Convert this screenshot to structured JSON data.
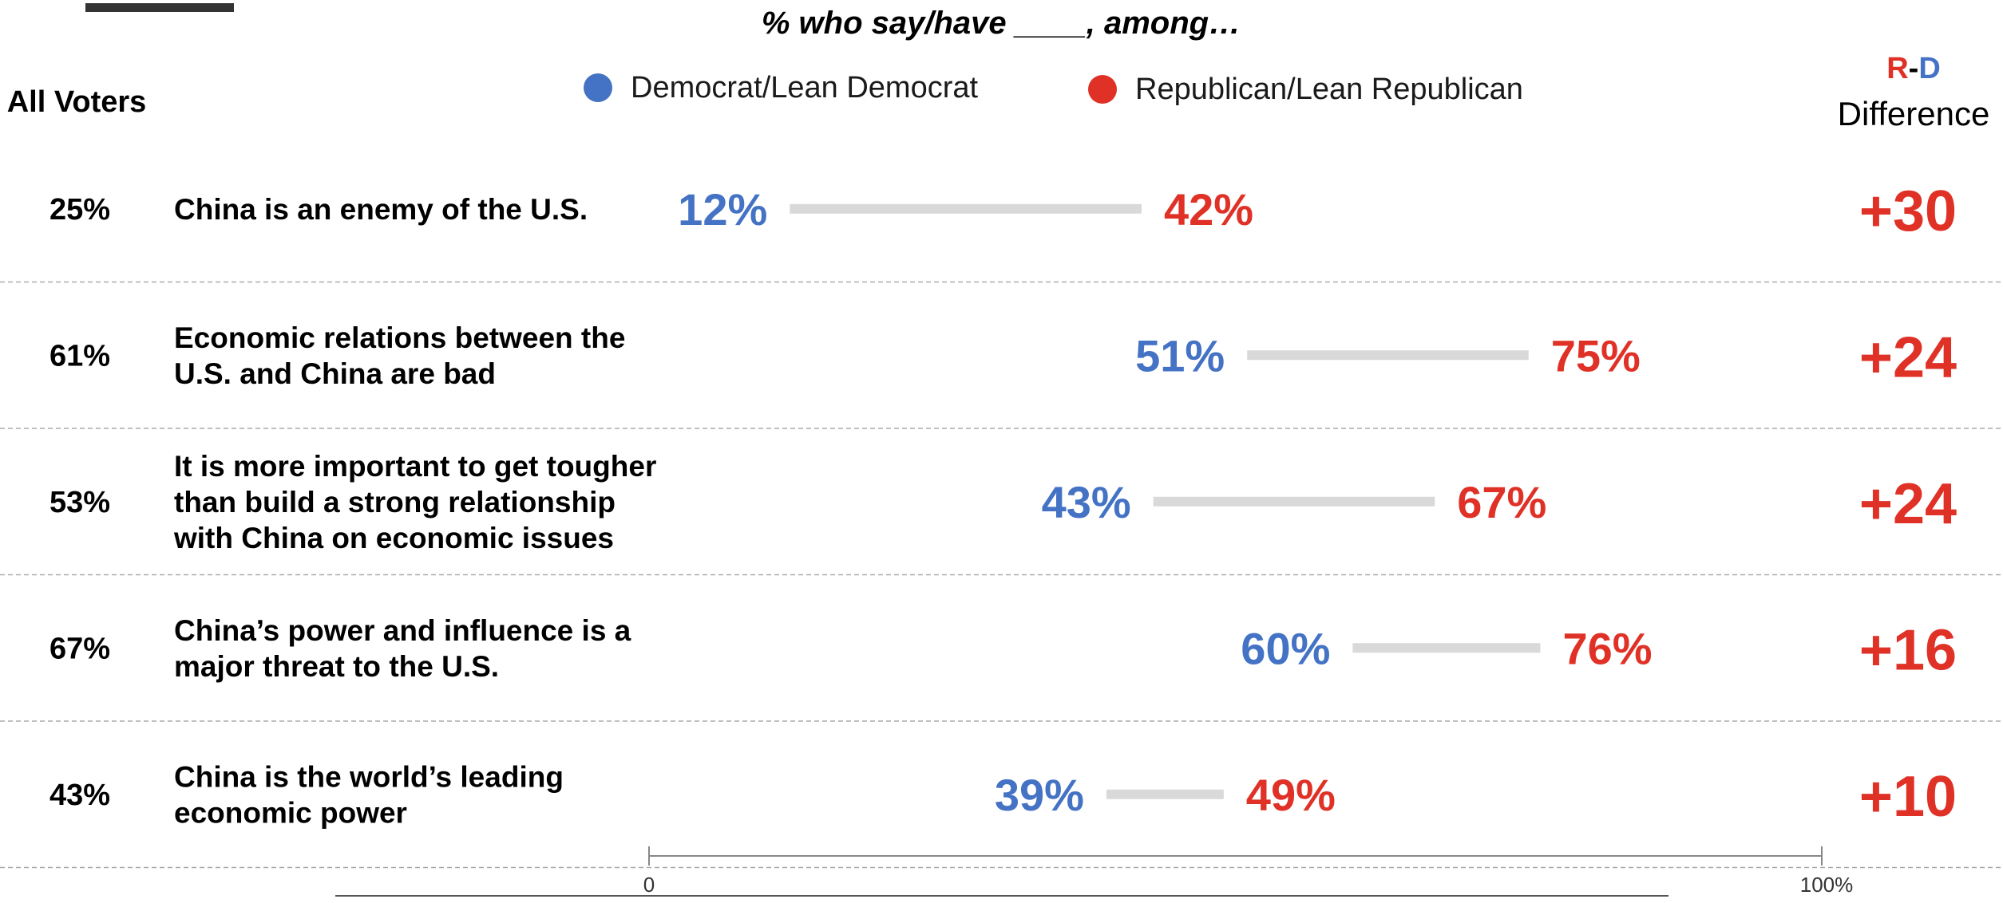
{
  "colors": {
    "democrat": "#4472C4",
    "republican": "#E03127",
    "connector": "#D9D9D9",
    "divider": "#AAAAAA",
    "text": "#000000"
  },
  "header": {
    "title": "% who say/have ____, among…",
    "all_voters": "All Voters",
    "diff_r": "R",
    "diff_dash": "-",
    "diff_d": "D",
    "diff_label": "Difference"
  },
  "legend": {
    "democrat": "Democrat/Lean Democrat",
    "republican": "Republican/Lean Republican"
  },
  "chart_data": {
    "type": "dot-range",
    "title": "% who say/have ____, among…",
    "xlim": [
      0,
      100
    ],
    "ticks": [
      {
        "value": 0,
        "label": "0"
      },
      {
        "value": 100,
        "label": "100%"
      }
    ],
    "legend_position": "top",
    "series": [
      {
        "name": "Democrat/Lean Democrat",
        "values": [
          12,
          51,
          43,
          60,
          39
        ]
      },
      {
        "name": "Republican/Lean Republican",
        "values": [
          42,
          75,
          67,
          76,
          49
        ]
      }
    ],
    "rows": [
      {
        "all": "25%",
        "label": [
          "China is an enemy of the U.S."
        ],
        "dem": 12,
        "dem_label": "12%",
        "rep": 42,
        "rep_label": "42%",
        "diff": "+30"
      },
      {
        "all": "61%",
        "label": [
          "Economic relations between the",
          "U.S. and China are bad"
        ],
        "dem": 51,
        "dem_label": "51%",
        "rep": 75,
        "rep_label": "75%",
        "diff": "+24"
      },
      {
        "all": "53%",
        "label": [
          "It is more important to get tougher",
          "than build a strong relationship",
          "with China on economic issues"
        ],
        "dem": 43,
        "dem_label": "43%",
        "rep": 67,
        "rep_label": "67%",
        "diff": "+24"
      },
      {
        "all": "67%",
        "label": [
          "China’s power and influence is a",
          "major threat to the U.S."
        ],
        "dem": 60,
        "dem_label": "60%",
        "rep": 76,
        "rep_label": "76%",
        "diff": "+16"
      },
      {
        "all": "43%",
        "label": [
          "China is the world’s leading",
          "economic power"
        ],
        "dem": 39,
        "dem_label": "39%",
        "rep": 49,
        "rep_label": "49%",
        "diff": "+10"
      }
    ]
  }
}
